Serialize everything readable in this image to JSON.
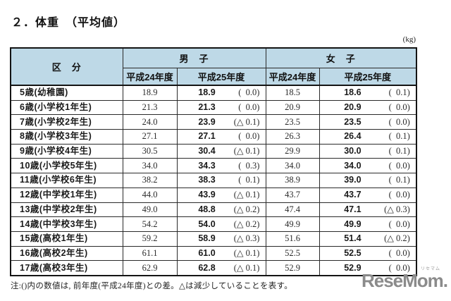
{
  "page": {
    "title": "２．体重　（平均値）",
    "unit_label": "(kg)",
    "note": "注:()内の数値は, 前年度(平成24年度)との差。△は減少していることを表す。",
    "logo": {
      "text": "ReseMom.",
      "ruby": "リセマム"
    }
  },
  "table": {
    "corner_header": "区　分",
    "groups": [
      {
        "label": "男　子"
      },
      {
        "label": "女　子"
      }
    ],
    "year_headers": [
      "平成24年度",
      "平成25年度"
    ],
    "rows": [
      {
        "label": "5歳(幼稚園)",
        "boys_h24": "18.9",
        "boys_h25": "18.9",
        "boys_diff": "(  0.0)",
        "girls_h24": "18.5",
        "girls_h25": "18.6",
        "girls_diff": "(  0.1)"
      },
      {
        "label": "6歳(小学校1年生)",
        "boys_h24": "21.3",
        "boys_h25": "21.3",
        "boys_diff": "(  0.0)",
        "girls_h24": "20.9",
        "girls_h25": "20.9",
        "girls_diff": "(  0.0)"
      },
      {
        "label": "7歳(小学校2年生)",
        "boys_h24": "24.0",
        "boys_h25": "23.9",
        "boys_diff": "(△ 0.1)",
        "girls_h24": "23.5",
        "girls_h25": "23.5",
        "girls_diff": "(  0.0)"
      },
      {
        "label": "8歳(小学校3年生)",
        "boys_h24": "27.1",
        "boys_h25": "27.1",
        "boys_diff": "(  0.0)",
        "girls_h24": "26.3",
        "girls_h25": "26.4",
        "girls_diff": "(  0.1)"
      },
      {
        "label": "9歳(小学校4年生)",
        "boys_h24": "30.5",
        "boys_h25": "30.4",
        "boys_diff": "(△ 0.1)",
        "girls_h24": "29.9",
        "girls_h25": "30.0",
        "girls_diff": "(  0.1)"
      },
      {
        "label": "10歳(小学校5年生)",
        "boys_h24": "34.0",
        "boys_h25": "34.3",
        "boys_diff": "(  0.3)",
        "girls_h24": "34.0",
        "girls_h25": "34.0",
        "girls_diff": "(  0.0)"
      },
      {
        "label": "11歳(小学校6年生)",
        "boys_h24": "38.2",
        "boys_h25": "38.3",
        "boys_diff": "(  0.1)",
        "girls_h24": "38.9",
        "girls_h25": "39.0",
        "girls_diff": "(  0.1)"
      },
      {
        "label": "12歳(中学校1年生)",
        "boys_h24": "44.0",
        "boys_h25": "43.9",
        "boys_diff": "(△ 0.1)",
        "girls_h24": "43.7",
        "girls_h25": "43.7",
        "girls_diff": "(  0.0)"
      },
      {
        "label": "13歳(中学校2年生)",
        "boys_h24": "49.0",
        "boys_h25": "48.8",
        "boys_diff": "(△ 0.2)",
        "girls_h24": "47.4",
        "girls_h25": "47.1",
        "girls_diff": "(△ 0.3)"
      },
      {
        "label": "14歳(中学校3年生)",
        "boys_h24": "54.2",
        "boys_h25": "54.0",
        "boys_diff": "(△ 0.2)",
        "girls_h24": "49.9",
        "girls_h25": "49.9",
        "girls_diff": "(  0.0)"
      },
      {
        "label": "15歳(高校1年生)",
        "boys_h24": "59.2",
        "boys_h25": "58.9",
        "boys_diff": "(△ 0.3)",
        "girls_h24": "51.6",
        "girls_h25": "51.4",
        "girls_diff": "(△ 0.2)"
      },
      {
        "label": "16歳(高校2年生)",
        "boys_h24": "61.1",
        "boys_h25": "61.0",
        "boys_diff": "(△ 0.1)",
        "girls_h24": "52.5",
        "girls_h25": "52.5",
        "girls_diff": "(  0.0)"
      },
      {
        "label": "17歳(高校3年生)",
        "boys_h24": "62.9",
        "boys_h25": "62.8",
        "boys_diff": "(△ 0.1)",
        "girls_h24": "52.9",
        "girls_h25": "52.9",
        "girls_diff": "(  0.0)"
      }
    ]
  }
}
